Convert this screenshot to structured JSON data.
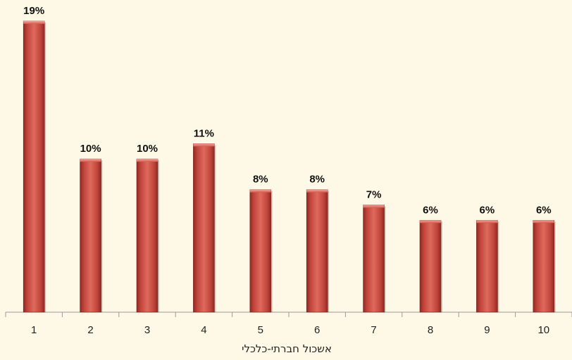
{
  "chart_data": {
    "type": "bar",
    "categories": [
      "1",
      "2",
      "3",
      "4",
      "5",
      "6",
      "7",
      "8",
      "9",
      "10"
    ],
    "values": [
      19,
      10,
      10,
      11,
      8,
      8,
      7,
      6,
      6,
      6
    ],
    "data_labels": [
      "19%",
      "10%",
      "10%",
      "11%",
      "8%",
      "8%",
      "7%",
      "6%",
      "6%",
      "6%"
    ],
    "xlabel": "אשכול חברתי-כלכלי",
    "ylabel": "",
    "ylim": [
      0,
      20
    ],
    "grid": false,
    "legend": "none",
    "bar_color": "#c9463c"
  }
}
